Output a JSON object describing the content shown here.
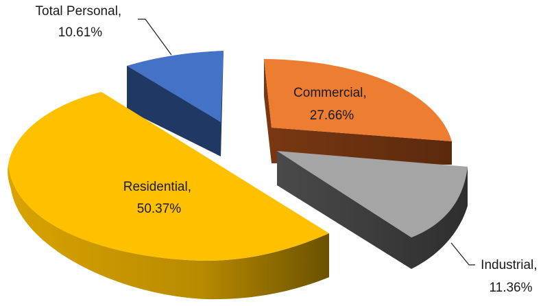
{
  "chart_data": {
    "type": "pie",
    "style": "3d-exploded",
    "title": "",
    "slices": [
      {
        "name": "Total Personal",
        "value": 10.61,
        "label_line1": "Total Personal,",
        "label_line2": "10.61%",
        "color": "#4472C4",
        "side_color": "#1F3864"
      },
      {
        "name": "Commercial",
        "value": 27.66,
        "label_line1": "Commercial,",
        "label_line2": "27.66%",
        "color": "#ED7D31",
        "side_color": "#843C0C"
      },
      {
        "name": "Industrial",
        "value": 11.36,
        "label_line1": "Industrial,",
        "label_line2": "11.36%",
        "color": "#A5A5A5",
        "side_color": "#4D4D4D"
      },
      {
        "name": "Residential",
        "value": 50.37,
        "label_line1": "Residential,",
        "label_line2": "50.37%",
        "color": "#FFC000",
        "side_color": "#B8860B"
      }
    ],
    "legend": "none"
  }
}
